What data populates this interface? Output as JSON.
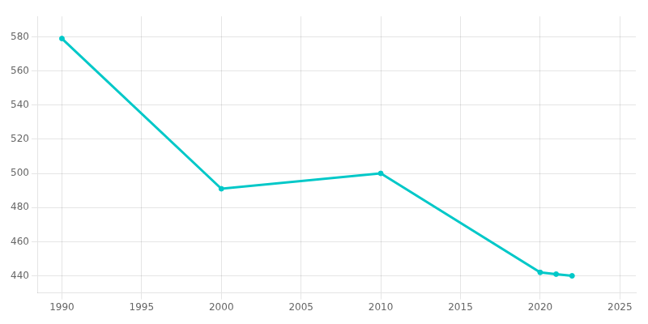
{
  "chart_data": {
    "type": "line",
    "x": [
      1990,
      2000,
      2010,
      2020,
      2021,
      2022
    ],
    "values": [
      579,
      491,
      500,
      442,
      441,
      440
    ],
    "color": "#00c8c8",
    "marker": "circle",
    "xlim": [
      1988.5,
      2026
    ],
    "ylim": [
      430,
      592
    ],
    "xticks": [
      1990,
      1995,
      2000,
      2005,
      2010,
      2015,
      2020,
      2025
    ],
    "yticks": [
      440,
      460,
      480,
      500,
      520,
      540,
      560,
      580
    ],
    "grid": true
  }
}
